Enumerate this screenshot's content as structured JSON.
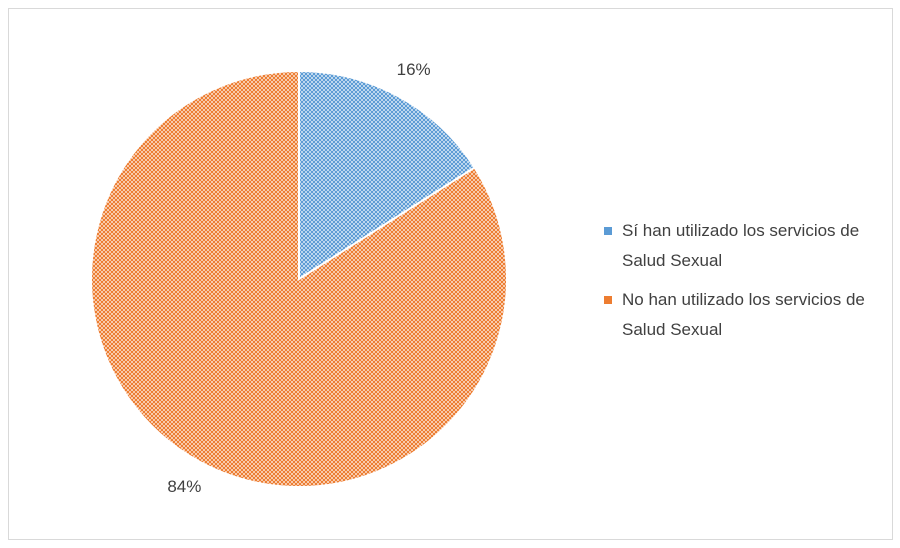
{
  "chart_data": {
    "type": "pie",
    "categories": [
      "Sí han utilizado los servicios de Salud Sexual",
      "No han utilizado los servicios de Salud Sexual"
    ],
    "values": [
      16,
      84
    ],
    "value_labels": [
      "16%",
      "84%"
    ],
    "colors": [
      "#5b9bd5",
      "#ed7d31"
    ],
    "legend": "right"
  }
}
